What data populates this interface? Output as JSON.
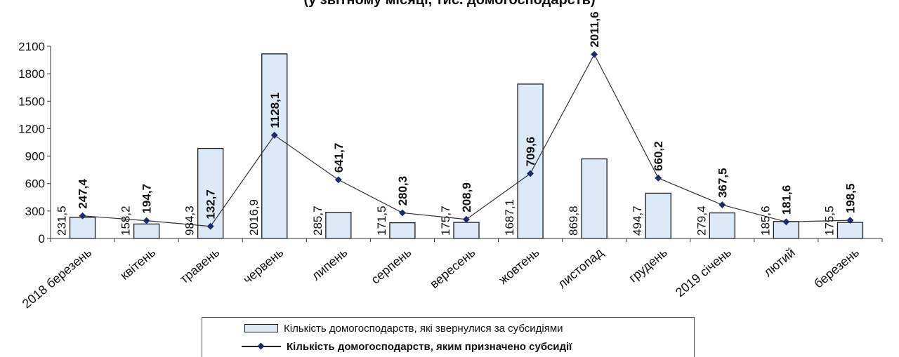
{
  "chart_data": {
    "type": "bar",
    "title": "(у звітному місяці, тис. домогосподарств)",
    "categories": [
      "2018 березень",
      "квітень",
      "травень",
      "червень",
      "липень",
      "серпень",
      "вересень",
      "жовтень",
      "листопад",
      "грудень",
      "2019 січень",
      "лютий",
      "березень"
    ],
    "ylim": [
      0,
      2100
    ],
    "yticks": [
      "0",
      "300",
      "600",
      "900",
      "1200",
      "1500",
      "1800",
      "2100"
    ],
    "grid": false,
    "legend_position": "bottom",
    "series": [
      {
        "name": "Кількість домогосподарств, які звернулися за субсидіями",
        "type": "bar",
        "values": [
          231.5,
          158.2,
          984.3,
          2016.9,
          285.7,
          171.5,
          175.7,
          1687.1,
          869.8,
          494.7,
          279.4,
          185.6,
          175.5
        ],
        "labels": [
          "231,5",
          "158,2",
          "984,3",
          "2016,9",
          "285,7",
          "171,5",
          "175,7",
          "1687,1",
          "869,8",
          "494,7",
          "279,4",
          "185,6",
          "175,5"
        ],
        "color": "#dce9f7",
        "edge_color": "#1a1a1a"
      },
      {
        "name": "Кількість домогосподарств, яким  призначено субсидії",
        "type": "line",
        "values": [
          247.4,
          194.7,
          132.7,
          1128.1,
          641.7,
          280.3,
          208.9,
          709.6,
          2011.6,
          660.2,
          367.5,
          181.6,
          198.5
        ],
        "labels": [
          "247,4",
          "194,7",
          "132,7",
          "1128,1",
          "641,7",
          "280,3",
          "208,9",
          "709,6",
          "2011,6",
          "660,2",
          "367,5",
          "181,6",
          "198,5"
        ],
        "color": "#1a2a6c"
      }
    ]
  }
}
